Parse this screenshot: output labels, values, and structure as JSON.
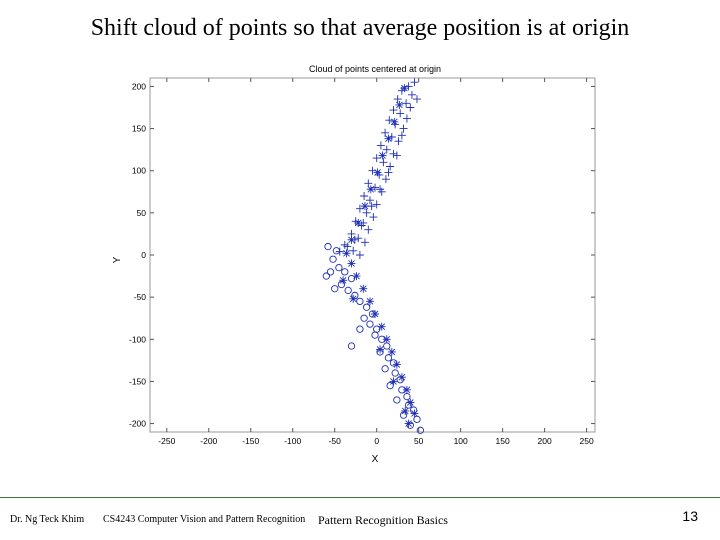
{
  "slide": {
    "title": "Shift cloud of points so that average position is at origin",
    "footer": {
      "author": "Dr. Ng Teck Khim",
      "course": "CS4243 Computer Vision and Pattern Recognition",
      "topic": "Pattern Recognition Basics",
      "page": "13"
    }
  },
  "colors": {
    "points": "#1f2fb5",
    "footer_rule": "#3b7a3b"
  },
  "chart_data": {
    "type": "scatter",
    "title": "Cloud of points centered at origin",
    "xlabel": "X",
    "ylabel": "Y",
    "xlim": [
      -270,
      260
    ],
    "ylim": [
      -210,
      210
    ],
    "xticks": [
      -250,
      -200,
      -150,
      -100,
      -50,
      0,
      50,
      100,
      150,
      200,
      250
    ],
    "yticks": [
      200,
      150,
      100,
      50,
      0,
      -50,
      -100,
      -150,
      -200
    ],
    "grid": false,
    "series": [
      {
        "marker": "plus",
        "points": [
          [
            38,
            200
          ],
          [
            30,
            195
          ],
          [
            42,
            190
          ],
          [
            25,
            185
          ],
          [
            35,
            180
          ],
          [
            20,
            172
          ],
          [
            28,
            168
          ],
          [
            40,
            175
          ],
          [
            15,
            160
          ],
          [
            22,
            155
          ],
          [
            32,
            150
          ],
          [
            10,
            145
          ],
          [
            18,
            140
          ],
          [
            26,
            135
          ],
          [
            5,
            130
          ],
          [
            12,
            125
          ],
          [
            20,
            120
          ],
          [
            0,
            115
          ],
          [
            8,
            110
          ],
          [
            16,
            105
          ],
          [
            -5,
            100
          ],
          [
            3,
            95
          ],
          [
            11,
            90
          ],
          [
            -10,
            85
          ],
          [
            -2,
            80
          ],
          [
            6,
            75
          ],
          [
            -15,
            70
          ],
          [
            -8,
            65
          ],
          [
            0,
            60
          ],
          [
            -20,
            55
          ],
          [
            -12,
            50
          ],
          [
            -4,
            45
          ],
          [
            -25,
            40
          ],
          [
            -18,
            35
          ],
          [
            -10,
            30
          ],
          [
            -30,
            25
          ],
          [
            -22,
            20
          ],
          [
            -14,
            15
          ],
          [
            -35,
            10
          ],
          [
            -28,
            5
          ],
          [
            -20,
            0
          ],
          [
            45,
            205
          ],
          [
            48,
            185
          ],
          [
            36,
            162
          ],
          [
            30,
            142
          ],
          [
            24,
            118
          ],
          [
            14,
            98
          ],
          [
            4,
            78
          ],
          [
            -6,
            58
          ],
          [
            -16,
            38
          ],
          [
            -26,
            18
          ],
          [
            -38,
            12
          ],
          [
            -44,
            4
          ]
        ]
      },
      {
        "marker": "star",
        "points": [
          [
            33,
            198
          ],
          [
            27,
            178
          ],
          [
            21,
            158
          ],
          [
            14,
            138
          ],
          [
            7,
            118
          ],
          [
            1,
            98
          ],
          [
            -7,
            78
          ],
          [
            -14,
            58
          ],
          [
            -22,
            38
          ],
          [
            -30,
            18
          ],
          [
            -36,
            2
          ],
          [
            -30,
            -10
          ],
          [
            -24,
            -25
          ],
          [
            -16,
            -40
          ],
          [
            -8,
            -55
          ],
          [
            -2,
            -70
          ],
          [
            6,
            -85
          ],
          [
            12,
            -100
          ],
          [
            18,
            -115
          ],
          [
            24,
            -130
          ],
          [
            30,
            -145
          ],
          [
            36,
            -160
          ],
          [
            40,
            -175
          ],
          [
            45,
            -188
          ],
          [
            38,
            -200
          ],
          [
            -40,
            -30
          ],
          [
            -28,
            -52
          ],
          [
            4,
            -112
          ],
          [
            20,
            -150
          ],
          [
            34,
            -185
          ]
        ]
      },
      {
        "marker": "circle",
        "points": [
          [
            -45,
            -15
          ],
          [
            -38,
            -20
          ],
          [
            -30,
            -28
          ],
          [
            -42,
            -35
          ],
          [
            -34,
            -42
          ],
          [
            -26,
            -48
          ],
          [
            -20,
            -55
          ],
          [
            -12,
            -62
          ],
          [
            -5,
            -70
          ],
          [
            -15,
            -75
          ],
          [
            -8,
            -82
          ],
          [
            0,
            -88
          ],
          [
            -2,
            -95
          ],
          [
            6,
            -100
          ],
          [
            12,
            -108
          ],
          [
            4,
            -115
          ],
          [
            14,
            -122
          ],
          [
            20,
            -128
          ],
          [
            10,
            -135
          ],
          [
            22,
            -140
          ],
          [
            28,
            -148
          ],
          [
            16,
            -155
          ],
          [
            30,
            -160
          ],
          [
            36,
            -168
          ],
          [
            24,
            -172
          ],
          [
            38,
            -178
          ],
          [
            44,
            -184
          ],
          [
            32,
            -190
          ],
          [
            48,
            -195
          ],
          [
            40,
            -202
          ],
          [
            52,
            -208
          ],
          [
            -55,
            -20
          ],
          [
            -50,
            -40
          ],
          [
            -60,
            -25
          ],
          [
            -30,
            -108
          ],
          [
            -20,
            -88
          ],
          [
            -48,
            5
          ],
          [
            -52,
            -5
          ],
          [
            -58,
            10
          ]
        ]
      }
    ]
  }
}
